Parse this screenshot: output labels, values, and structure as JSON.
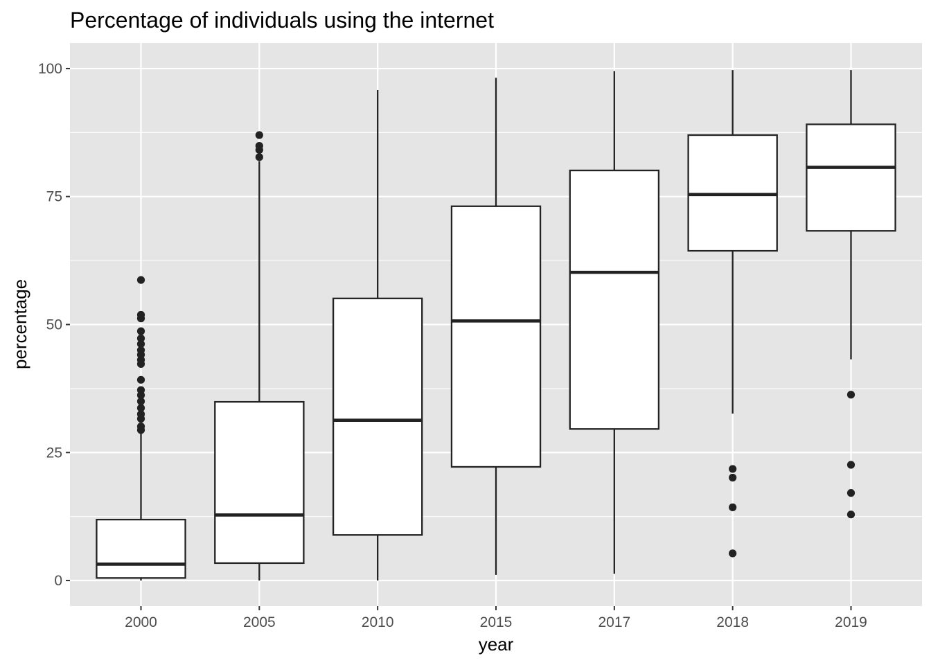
{
  "chart_data": {
    "type": "boxplot",
    "title": "Percentage of individuals using the internet",
    "xlabel": "year",
    "ylabel": "percentage",
    "ylim": [
      -5,
      105
    ],
    "yticks": [
      0,
      25,
      50,
      75,
      100
    ],
    "ytick_labels": [
      "0",
      "25",
      "50",
      "75",
      "100"
    ],
    "grid": true,
    "legend": "none",
    "colors": {
      "panel": "#e5e5e5",
      "grid": "#ffffff",
      "box_fill": "#ffffff",
      "box_stroke": "#222222",
      "outlier": "#222222"
    },
    "categories": [
      "2000",
      "2005",
      "2010",
      "2015",
      "2017",
      "2018",
      "2019"
    ],
    "boxes": [
      {
        "x": "2000",
        "whisker_low": 0.0,
        "q1": 0.5,
        "median": 3.2,
        "q3": 11.9,
        "whisker_high": 28.9,
        "outliers": [
          29.4,
          30.1,
          31.6,
          32.5,
          33.7,
          35.0,
          36.2,
          37.2,
          39.2,
          42.3,
          43.1,
          44.1,
          45.0,
          46.2,
          47.3,
          48.7,
          51.2,
          51.9,
          58.7
        ]
      },
      {
        "x": "2005",
        "whisker_low": 0.0,
        "q1": 3.4,
        "median": 12.8,
        "q3": 34.9,
        "whisker_high": 81.9,
        "outliers": [
          82.7,
          84.1,
          84.9,
          87.0
        ]
      },
      {
        "x": "2010",
        "whisker_low": 0.0,
        "q1": 8.9,
        "median": 31.3,
        "q3": 55.1,
        "whisker_high": 95.8,
        "outliers": []
      },
      {
        "x": "2015",
        "whisker_low": 1.1,
        "q1": 22.2,
        "median": 50.7,
        "q3": 73.1,
        "whisker_high": 98.2,
        "outliers": []
      },
      {
        "x": "2017",
        "whisker_low": 1.3,
        "q1": 29.6,
        "median": 60.2,
        "q3": 80.1,
        "whisker_high": 99.5,
        "outliers": []
      },
      {
        "x": "2018",
        "whisker_low": 32.6,
        "q1": 64.4,
        "median": 75.4,
        "q3": 87.0,
        "whisker_high": 99.7,
        "outliers": [
          5.3,
          14.3,
          20.1,
          21.8
        ]
      },
      {
        "x": "2019",
        "whisker_low": 43.2,
        "q1": 68.3,
        "median": 80.7,
        "q3": 89.1,
        "whisker_high": 99.7,
        "outliers": [
          12.9,
          17.1,
          22.6,
          36.3
        ]
      }
    ]
  }
}
